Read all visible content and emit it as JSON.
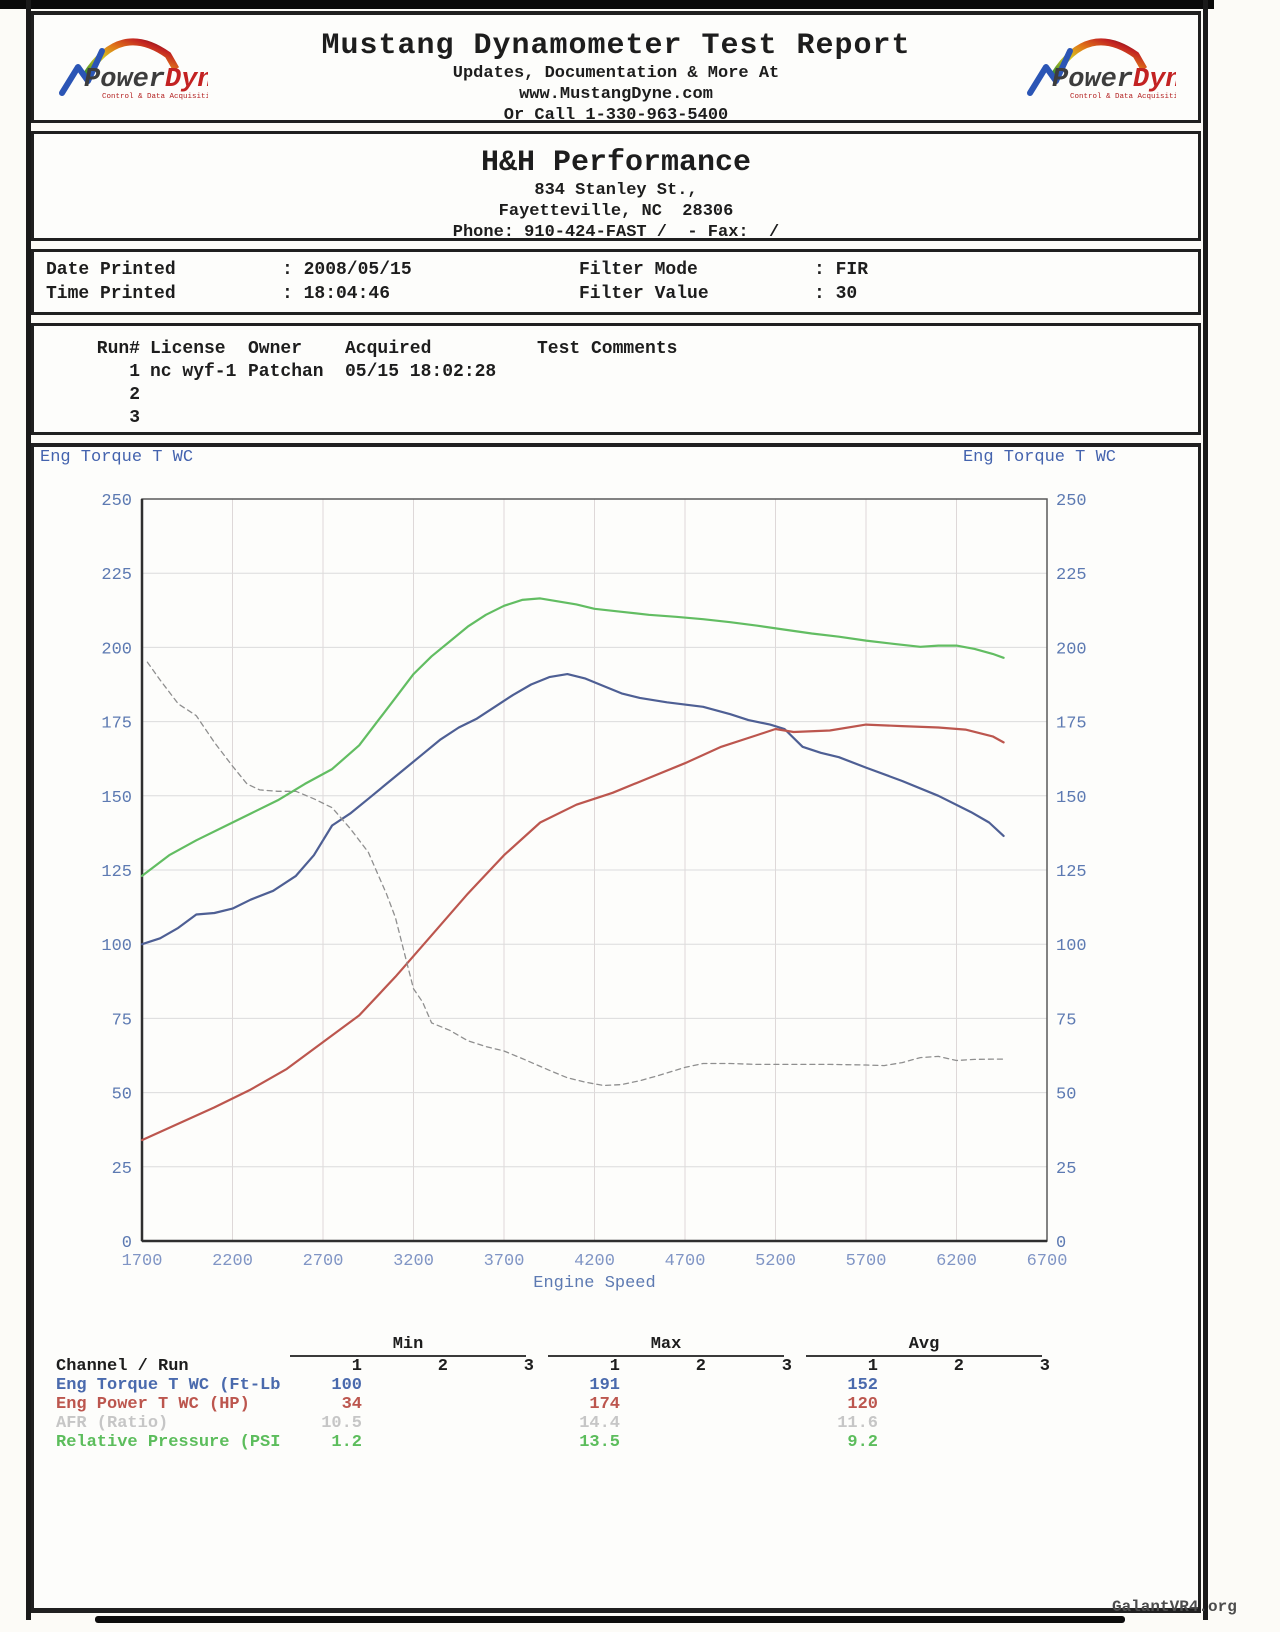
{
  "report_header": {
    "title": "Mustang Dynamometer Test Report",
    "subtitle1": "Updates, Documentation & More At",
    "subtitle2": "www.MustangDyne.com",
    "subtitle3": "Or Call 1-330-963-5400",
    "logo": {
      "power": "Power",
      "dyne": "Dyne",
      "reg": "®",
      "tagline": "Control & Data Acquisition"
    }
  },
  "shop": {
    "name": "H&H Performance",
    "address1": "834 Stanley St.,",
    "address2": "Fayetteville, NC  28306",
    "phone_fax": "Phone: 910-424-FAST /  - Fax:  /"
  },
  "print_info": {
    "date_label": "Date Printed",
    "date_value": ": 2008/05/15",
    "time_label": "Time Printed",
    "time_value": ": 18:04:46",
    "filter_mode_label": "Filter Mode",
    "filter_mode_value": ": FIR",
    "filter_value_label": "Filter Value",
    "filter_value_value": ": 30"
  },
  "runs": {
    "headers": {
      "run": "Run#",
      "license": "License",
      "owner": "Owner",
      "acquired": "Acquired",
      "comments": "Test Comments"
    },
    "rows": [
      {
        "run": "1",
        "license": "nc wyf-1",
        "owner": "Patchan",
        "acquired": "05/15 18:02:28",
        "comments": ""
      },
      {
        "run": "2",
        "license": "",
        "owner": "",
        "acquired": "",
        "comments": ""
      },
      {
        "run": "3",
        "license": "",
        "owner": "",
        "acquired": "",
        "comments": ""
      }
    ]
  },
  "chart_data": {
    "type": "line",
    "xlabel": "Engine Speed",
    "ylabel_left": "Eng Torque T WC",
    "ylabel_right": "Eng Torque T WC",
    "xlim": [
      1700,
      6700
    ],
    "ylim": [
      0,
      250
    ],
    "x_ticks": [
      1700,
      2200,
      2700,
      3200,
      3700,
      4200,
      4700,
      5200,
      5700,
      6200,
      6700
    ],
    "y_ticks": [
      0,
      25,
      50,
      75,
      100,
      125,
      150,
      175,
      200,
      225,
      250
    ],
    "grid": true,
    "legend_position": "none",
    "series": [
      {
        "name": "Eng Torque T WC (Ft-Lb)",
        "color": "#4e5f94",
        "style": "solid",
        "x": [
          1700,
          1800,
          1900,
          2000,
          2100,
          2200,
          2300,
          2425,
          2550,
          2650,
          2750,
          2850,
          2950,
          3050,
          3150,
          3250,
          3350,
          3450,
          3550,
          3650,
          3750,
          3850,
          3950,
          4050,
          4150,
          4250,
          4350,
          4450,
          4600,
          4800,
          4950,
          5050,
          5170,
          5250,
          5350,
          5450,
          5550,
          5700,
          5900,
          6100,
          6280,
          6380,
          6460
        ],
        "y": [
          100,
          102,
          105.5,
          110,
          110.5,
          112,
          115,
          118,
          123,
          130,
          140,
          144,
          149,
          154,
          159,
          164,
          169,
          173,
          176,
          180,
          184,
          187.5,
          190,
          191,
          189.5,
          187,
          184.5,
          183,
          181.5,
          180,
          177.5,
          175.5,
          174,
          172.5,
          166.5,
          164.5,
          163,
          159.5,
          155,
          150,
          144.5,
          141,
          136.5
        ]
      },
      {
        "name": "Eng Power T WC (HP)",
        "color": "#bc564e",
        "style": "solid",
        "x": [
          1700,
          1900,
          2100,
          2300,
          2500,
          2700,
          2900,
          3100,
          3300,
          3500,
          3700,
          3900,
          4100,
          4300,
          4500,
          4700,
          4900,
          5100,
          5200,
          5300,
          5500,
          5700,
          5900,
          6100,
          6250,
          6400,
          6460
        ],
        "y": [
          34,
          39.5,
          45,
          51,
          58,
          67,
          76,
          89,
          103,
          117,
          130,
          141,
          147,
          151,
          156,
          161,
          166.5,
          170.5,
          172.5,
          171.5,
          172,
          174,
          173.5,
          173,
          172.3,
          170,
          168
        ]
      },
      {
        "name": "AFR (Ratio)",
        "color": "#8f8f8f",
        "style": "dashed",
        "scale_note": "plotted on hidden scale; table values 10.5 / 14.4 / 11.6",
        "x": [
          1730,
          1800,
          1900,
          2000,
          2100,
          2200,
          2280,
          2350,
          2450,
          2550,
          2650,
          2750,
          2850,
          2950,
          3000,
          3050,
          3100,
          3150,
          3200,
          3250,
          3300,
          3400,
          3500,
          3600,
          3700,
          3800,
          3950,
          4050,
          4150,
          4250,
          4350,
          4450,
          4550,
          4700,
          4800,
          4950,
          5100,
          5300,
          5500,
          5700,
          5800,
          5900,
          6000,
          6100,
          6200,
          6300,
          6400,
          6460
        ],
        "y": [
          195,
          189,
          181,
          177,
          168,
          160,
          154,
          152,
          151.5,
          151.5,
          149,
          146,
          139,
          131,
          124,
          117,
          109,
          97,
          85,
          80.5,
          73.5,
          71,
          67.5,
          65.5,
          64,
          61.5,
          57.5,
          55,
          53.5,
          52.4,
          52.7,
          54,
          55.7,
          58.5,
          59.8,
          59.8,
          59.5,
          59.5,
          59.5,
          59.3,
          59.1,
          60.1,
          61.8,
          62.2,
          60.8,
          61.2,
          61.3,
          61.3
        ]
      },
      {
        "name": "Relative Pressure (PSI)",
        "color": "#62bd62",
        "style": "solid",
        "scale_note": "plotted on hidden scale; table values 1.2 / 13.5 / 9.2",
        "x": [
          1700,
          1850,
          2000,
          2150,
          2300,
          2450,
          2600,
          2750,
          2900,
          3000,
          3100,
          3200,
          3300,
          3400,
          3500,
          3600,
          3700,
          3800,
          3900,
          4000,
          4100,
          4200,
          4350,
          4500,
          4650,
          4800,
          4950,
          5100,
          5250,
          5400,
          5550,
          5700,
          5850,
          6000,
          6100,
          6200,
          6300,
          6400,
          6460
        ],
        "y": [
          123,
          130,
          135,
          139.5,
          144,
          148.5,
          154,
          159,
          167,
          175,
          183,
          191,
          197,
          202,
          207,
          211,
          214,
          216,
          216.5,
          215.5,
          214.5,
          213,
          212,
          211,
          210.3,
          209.5,
          208.5,
          207.3,
          206,
          204.7,
          203.6,
          202.3,
          201.2,
          200.2,
          200.6,
          200.6,
          199.5,
          197.8,
          196.5
        ]
      }
    ]
  },
  "stats_table": {
    "group_headers": [
      "Min",
      "Max",
      "Avg"
    ],
    "run_headers": [
      "1",
      "2",
      "3"
    ],
    "channel_label": "Channel / Run",
    "rows": [
      {
        "label": "Eng Torque T WC (Ft-Lb",
        "color": "#4a6aad",
        "values": [
          "100",
          "",
          "",
          "191",
          "",
          "",
          "152",
          "",
          ""
        ]
      },
      {
        "label": "Eng Power T WC (HP)",
        "color": "#bc564e",
        "values": [
          "34",
          "",
          "",
          "174",
          "",
          "",
          "120",
          "",
          ""
        ]
      },
      {
        "label": "AFR (Ratio)",
        "color": "#c6c6c6",
        "values": [
          "10.5",
          "",
          "",
          "14.4",
          "",
          "",
          "11.6",
          "",
          ""
        ]
      },
      {
        "label": "Relative Pressure (PSI",
        "color": "#5cbd5c",
        "values": [
          "1.2",
          "",
          "",
          "13.5",
          "",
          "",
          "9.2",
          "",
          ""
        ]
      }
    ]
  },
  "watermark": "GalantVR4.org"
}
